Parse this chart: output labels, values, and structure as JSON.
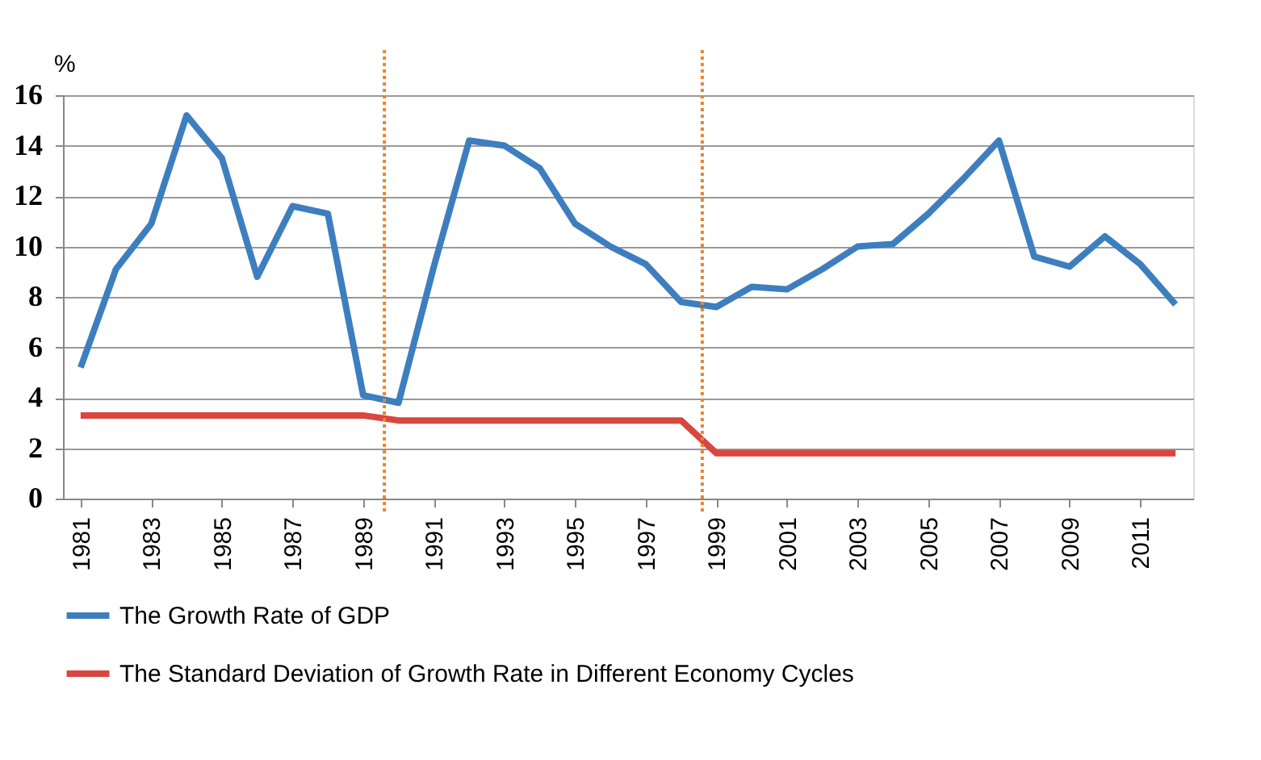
{
  "chart_data": {
    "type": "line",
    "ylabel": "%",
    "x": [
      1981,
      1982,
      1983,
      1984,
      1985,
      1986,
      1987,
      1988,
      1989,
      1990,
      1991,
      1992,
      1993,
      1994,
      1995,
      1996,
      1997,
      1998,
      1999,
      2000,
      2001,
      2002,
      2003,
      2004,
      2005,
      2006,
      2007,
      2008,
      2009,
      2010,
      2011,
      2012
    ],
    "series": [
      {
        "name": "The Growth Rate of GDP",
        "color": "#3d7ebf",
        "values": [
          5.2,
          9.1,
          10.9,
          15.2,
          13.5,
          8.8,
          11.6,
          11.3,
          4.1,
          3.8,
          9.2,
          14.2,
          14.0,
          13.1,
          10.9,
          10.0,
          9.3,
          7.8,
          7.6,
          8.4,
          8.3,
          9.1,
          10.0,
          10.1,
          11.3,
          12.7,
          14.2,
          9.6,
          9.2,
          10.4,
          9.3,
          7.7
        ]
      },
      {
        "name": "The Standard Deviation of Growth Rate in Different Economy Cycles",
        "color": "#d9453f",
        "values": [
          3.3,
          3.3,
          3.3,
          3.3,
          3.3,
          3.3,
          3.3,
          3.3,
          3.3,
          3.1,
          3.1,
          3.1,
          3.1,
          3.1,
          3.1,
          3.1,
          3.1,
          3.1,
          1.8,
          1.8,
          1.8,
          1.8,
          1.8,
          1.8,
          1.8,
          1.8,
          1.8,
          1.8,
          1.8,
          1.8,
          1.8,
          1.8
        ]
      }
    ],
    "xlim": [
      1980.5,
      2012.5
    ],
    "xticks": [
      1981,
      1983,
      1985,
      1987,
      1989,
      1991,
      1993,
      1995,
      1997,
      1999,
      2001,
      2003,
      2005,
      2007,
      2009,
      2011
    ],
    "ylim": [
      0,
      16
    ],
    "yticks": [
      0,
      2,
      4,
      6,
      8,
      10,
      12,
      14,
      16
    ],
    "ref_lines": [
      {
        "axis": "x",
        "value": 1989.6,
        "color": "#f0822a",
        "line_style": "dotted"
      },
      {
        "axis": "x",
        "value": 1998.6,
        "color": "#f0822a",
        "line_style": "dotted"
      }
    ],
    "grid": "y",
    "legend": "bottom",
    "marker": "none",
    "line_style": "solid"
  }
}
